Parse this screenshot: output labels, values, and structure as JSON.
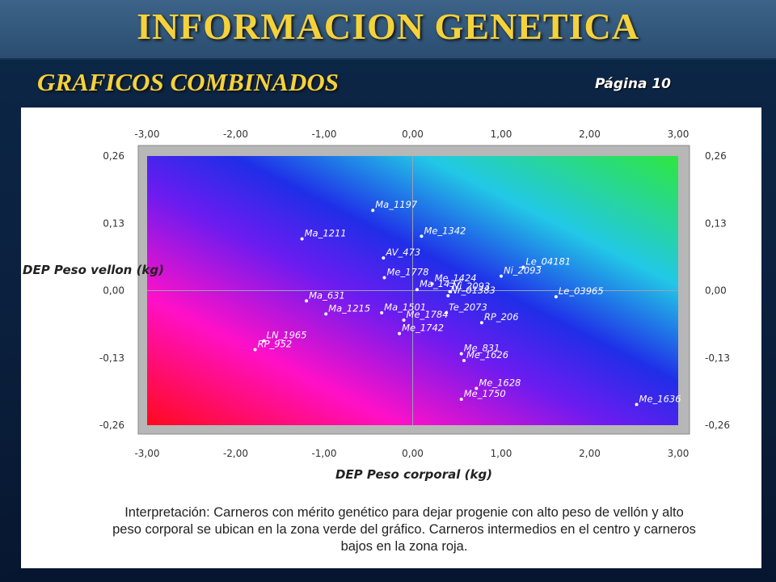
{
  "header": {
    "title": "INFORMACION GENETICA"
  },
  "section": {
    "subtitle": "GRAFICOS COMBINADOS",
    "page_label": "Página 10"
  },
  "chart_data": {
    "type": "scatter",
    "title": "",
    "xlabel": "DEP Peso corporal (kg)",
    "ylabel": "DEP Peso vellon (kg)",
    "xlim": [
      -3,
      3
    ],
    "ylim": [
      -0.26,
      0.26
    ],
    "x_ticks": [
      "-3,00",
      "-2,00",
      "-1,00",
      "0,00",
      "1,00",
      "2,00",
      "3,00"
    ],
    "y_ticks": [
      "0,26",
      "0,13",
      "0,00",
      "-0,13",
      "-0,26"
    ],
    "background": "diagonal color gradient (red bottom-left, magenta, blue, cyan, green top-right)",
    "points": [
      {
        "label": "Ma_1197",
        "x": -0.45,
        "y": 0.155
      },
      {
        "label": "Ma_1211",
        "x": -1.25,
        "y": 0.1
      },
      {
        "label": "Me_1342",
        "x": 0.1,
        "y": 0.105
      },
      {
        "label": "AV_473",
        "x": -0.33,
        "y": 0.063
      },
      {
        "label": "Le_04181",
        "x": 1.25,
        "y": 0.045
      },
      {
        "label": "Ni_2093",
        "x": 1.0,
        "y": 0.028
      },
      {
        "label": "Me_1778",
        "x": -0.32,
        "y": 0.025
      },
      {
        "label": "Me_1424",
        "x": 0.22,
        "y": 0.013
      },
      {
        "label": "Ma_1437",
        "x": 0.05,
        "y": 0.002
      },
      {
        "label": "Ni_2093",
        "x": 0.42,
        "y": -0.002
      },
      {
        "label": "Nr_01383",
        "x": 0.4,
        "y": -0.01
      },
      {
        "label": "Le_03965",
        "x": 1.62,
        "y": -0.012
      },
      {
        "label": "Ma_631",
        "x": -1.2,
        "y": -0.02
      },
      {
        "label": "Ma_1501",
        "x": -0.35,
        "y": -0.043
      },
      {
        "label": "Te_2073",
        "x": 0.38,
        "y": -0.043
      },
      {
        "label": "Ma_1215",
        "x": -0.98,
        "y": -0.045
      },
      {
        "label": "Me_1784",
        "x": -0.1,
        "y": -0.057
      },
      {
        "label": "RP_206",
        "x": 0.78,
        "y": -0.062
      },
      {
        "label": "Me_1742",
        "x": -0.15,
        "y": -0.083
      },
      {
        "label": "LN_1965",
        "x": -1.68,
        "y": -0.097
      },
      {
        "label": "RP_952",
        "x": -1.78,
        "y": -0.114
      },
      {
        "label": "Me_831",
        "x": 0.55,
        "y": -0.122
      },
      {
        "label": "Me_1626",
        "x": 0.58,
        "y": -0.135
      },
      {
        "label": "Me_1628",
        "x": 0.72,
        "y": -0.189
      },
      {
        "label": "Me_1750",
        "x": 0.55,
        "y": -0.21
      },
      {
        "label": "Me_1636",
        "x": 2.53,
        "y": -0.22
      }
    ]
  },
  "interpretation": {
    "line1": "Interpretación: Carneros con mérito genético para dejar progenie con alto peso de vellón y alto",
    "line2": "peso corporal se ubican en la zona verde del gráfico. Carneros intermedios en el centro y carneros",
    "line3": "bajos en la zona roja."
  },
  "colors": {
    "title": "#f5d23a",
    "background": "#0a1f3c",
    "frame": "#b4b4b4"
  }
}
